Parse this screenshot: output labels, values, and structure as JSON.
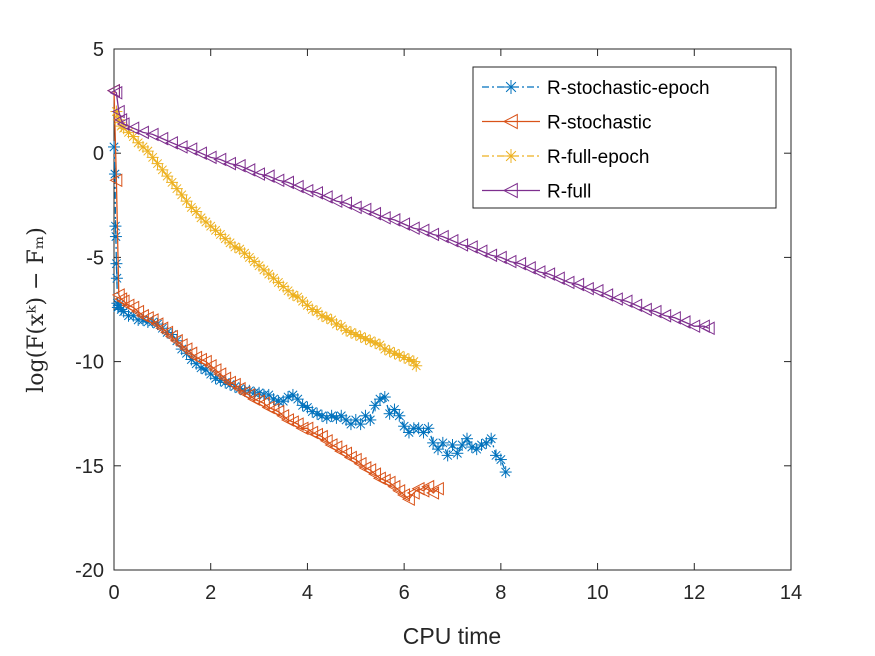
{
  "chart_data": {
    "type": "line",
    "xlabel": "CPU time",
    "ylabel": "log(F(xᵏ) − Fₘ)",
    "xlim": [
      0,
      14
    ],
    "ylim": [
      -20,
      5
    ],
    "xticks": [
      0,
      2,
      4,
      6,
      8,
      10,
      12,
      14
    ],
    "xtick_labels": [
      "0",
      "2",
      "4",
      "6",
      "8",
      "10",
      "12",
      "14"
    ],
    "yticks": [
      -20,
      -15,
      -10,
      -5,
      0,
      5
    ],
    "ytick_labels": [
      "-20",
      "-15",
      "-10",
      "-5",
      "0",
      "5"
    ],
    "grid": false,
    "legend_position": "top-right",
    "series": [
      {
        "name": "R-stochastic-epoch",
        "color": "#0072BD",
        "line_style": "dash-dot",
        "marker": "asterisk",
        "x": [
          0.0,
          0.02,
          0.03,
          0.04,
          0.05,
          0.06,
          0.07,
          0.08,
          0.1,
          0.15,
          0.2,
          0.3,
          0.4,
          0.5,
          0.6,
          0.7,
          0.8,
          0.9,
          1.0,
          1.1,
          1.2,
          1.3,
          1.4,
          1.5,
          1.6,
          1.7,
          1.8,
          1.9,
          2.0,
          2.1,
          2.2,
          2.3,
          2.4,
          2.5,
          2.6,
          2.7,
          2.8,
          2.9,
          3.0,
          3.1,
          3.2,
          3.3,
          3.4,
          3.5,
          3.6,
          3.7,
          3.8,
          3.9,
          4.0,
          4.1,
          4.2,
          4.3,
          4.4,
          4.5,
          4.6,
          4.7,
          4.8,
          4.9,
          5.0,
          5.1,
          5.2,
          5.3,
          5.4,
          5.5,
          5.6,
          5.7,
          5.8,
          5.9,
          6.0,
          6.1,
          6.2,
          6.3,
          6.4,
          6.5,
          6.6,
          6.7,
          6.8,
          6.9,
          7.0,
          7.1,
          7.2,
          7.3,
          7.4,
          7.5,
          7.6,
          7.7,
          7.8,
          7.9,
          8.0,
          8.1
        ],
        "y": [
          0.3,
          -1.0,
          -3.5,
          -4.0,
          -5.3,
          -6.0,
          -7.2,
          -7.4,
          -7.3,
          -7.5,
          -7.6,
          -7.8,
          -7.8,
          -8.0,
          -8.0,
          -8.1,
          -8.1,
          -8.2,
          -8.4,
          -8.6,
          -8.7,
          -9.0,
          -9.4,
          -9.6,
          -9.9,
          -10.1,
          -10.3,
          -10.4,
          -10.6,
          -10.8,
          -10.9,
          -11.0,
          -11.1,
          -11.2,
          -11.3,
          -11.4,
          -11.4,
          -11.5,
          -11.5,
          -11.6,
          -11.6,
          -11.8,
          -11.9,
          -11.9,
          -11.7,
          -11.6,
          -11.8,
          -12.1,
          -12.2,
          -12.4,
          -12.5,
          -12.6,
          -12.7,
          -12.6,
          -12.7,
          -12.6,
          -12.8,
          -13.0,
          -12.8,
          -13.0,
          -12.6,
          -12.8,
          -12.1,
          -11.8,
          -11.7,
          -12.5,
          -12.3,
          -12.6,
          -13.1,
          -13.4,
          -13.2,
          -13.2,
          -13.4,
          -13.2,
          -13.9,
          -14.2,
          -13.9,
          -14.5,
          -14.0,
          -14.4,
          -14.0,
          -13.7,
          -14.1,
          -14.2,
          -14.0,
          -13.9,
          -13.7,
          -14.5,
          -14.7,
          -15.3
        ]
      },
      {
        "name": "R-stochastic",
        "color": "#D95319",
        "line_style": "solid",
        "marker": "triangle-left",
        "x": [
          0.0,
          0.05,
          0.1,
          0.15,
          0.2,
          0.3,
          0.4,
          0.5,
          0.6,
          0.7,
          0.8,
          0.9,
          1.0,
          1.1,
          1.2,
          1.3,
          1.4,
          1.5,
          1.6,
          1.7,
          1.8,
          1.9,
          2.0,
          2.1,
          2.2,
          2.3,
          2.4,
          2.5,
          2.6,
          2.7,
          2.8,
          2.9,
          3.0,
          3.1,
          3.2,
          3.3,
          3.4,
          3.5,
          3.6,
          3.7,
          3.8,
          3.9,
          4.0,
          4.1,
          4.2,
          4.3,
          4.4,
          4.5,
          4.6,
          4.7,
          4.8,
          4.9,
          5.0,
          5.1,
          5.2,
          5.3,
          5.4,
          5.5,
          5.6,
          5.7,
          5.8,
          5.9,
          6.0,
          6.1,
          6.2,
          6.3,
          6.4,
          6.5,
          6.6,
          6.7
        ],
        "y": [
          3.0,
          -1.3,
          -6.8,
          -7.0,
          -7.1,
          -7.3,
          -7.4,
          -7.6,
          -7.8,
          -7.9,
          -8.0,
          -8.2,
          -8.4,
          -8.6,
          -8.8,
          -9.0,
          -9.2,
          -9.4,
          -9.6,
          -9.8,
          -9.9,
          -10.0,
          -10.2,
          -10.4,
          -10.6,
          -10.8,
          -11.0,
          -11.1,
          -11.3,
          -11.5,
          -11.6,
          -11.8,
          -11.9,
          -12.0,
          -12.2,
          -12.3,
          -12.4,
          -12.6,
          -12.8,
          -12.9,
          -13.0,
          -13.2,
          -13.2,
          -13.4,
          -13.5,
          -13.6,
          -13.8,
          -14.0,
          -14.1,
          -14.3,
          -14.4,
          -14.6,
          -14.7,
          -14.9,
          -15.1,
          -15.2,
          -15.4,
          -15.6,
          -15.7,
          -15.8,
          -16.0,
          -16.2,
          -16.4,
          -16.6,
          -16.3,
          -16.1,
          -16.2,
          -16.0,
          -16.3,
          -16.1
        ]
      },
      {
        "name": "R-full-epoch",
        "color": "#EDB120",
        "line_style": "dash-dot",
        "marker": "asterisk",
        "x": [
          0.05,
          0.1,
          0.15,
          0.2,
          0.3,
          0.4,
          0.5,
          0.6,
          0.7,
          0.8,
          0.9,
          1.0,
          1.1,
          1.2,
          1.3,
          1.4,
          1.5,
          1.6,
          1.7,
          1.8,
          1.9,
          2.0,
          2.1,
          2.2,
          2.3,
          2.4,
          2.5,
          2.6,
          2.7,
          2.8,
          2.9,
          3.0,
          3.1,
          3.2,
          3.3,
          3.4,
          3.5,
          3.6,
          3.7,
          3.8,
          3.9,
          4.0,
          4.1,
          4.2,
          4.3,
          4.4,
          4.5,
          4.6,
          4.7,
          4.8,
          4.9,
          5.0,
          5.1,
          5.2,
          5.3,
          5.4,
          5.5,
          5.6,
          5.7,
          5.8,
          5.9,
          6.0,
          6.1,
          6.2,
          6.25
        ],
        "y": [
          2.0,
          1.6,
          1.3,
          1.2,
          1.0,
          0.8,
          0.5,
          0.3,
          0.1,
          -0.2,
          -0.5,
          -0.8,
          -1.1,
          -1.4,
          -1.7,
          -2.0,
          -2.3,
          -2.6,
          -2.8,
          -3.1,
          -3.3,
          -3.5,
          -3.7,
          -3.9,
          -4.1,
          -4.3,
          -4.5,
          -4.6,
          -4.8,
          -5.0,
          -5.2,
          -5.4,
          -5.6,
          -5.8,
          -6.0,
          -6.2,
          -6.4,
          -6.6,
          -6.8,
          -6.9,
          -7.1,
          -7.3,
          -7.5,
          -7.6,
          -7.8,
          -7.9,
          -8.0,
          -8.2,
          -8.3,
          -8.5,
          -8.6,
          -8.7,
          -8.8,
          -8.9,
          -9.0,
          -9.1,
          -9.2,
          -9.4,
          -9.5,
          -9.6,
          -9.7,
          -9.8,
          -9.9,
          -10.0,
          -10.2
        ]
      },
      {
        "name": "R-full",
        "color": "#7E2F8E",
        "line_style": "solid",
        "marker": "triangle-left",
        "x": [
          0.0,
          0.05,
          0.1,
          0.15,
          0.2,
          0.4,
          0.6,
          0.8,
          1.0,
          1.2,
          1.4,
          1.6,
          1.8,
          2.0,
          2.2,
          2.4,
          2.6,
          2.8,
          3.0,
          3.2,
          3.4,
          3.6,
          3.8,
          4.0,
          4.2,
          4.4,
          4.6,
          4.8,
          5.0,
          5.2,
          5.4,
          5.6,
          5.8,
          6.0,
          6.2,
          6.4,
          6.6,
          6.8,
          7.0,
          7.2,
          7.4,
          7.6,
          7.8,
          8.0,
          8.2,
          8.4,
          8.6,
          8.8,
          9.0,
          9.2,
          9.4,
          9.6,
          9.8,
          10.0,
          10.2,
          10.4,
          10.6,
          10.8,
          11.0,
          11.2,
          11.4,
          11.6,
          11.8,
          12.0,
          12.2,
          12.3
        ],
        "y": [
          3.0,
          2.9,
          2.0,
          1.6,
          1.4,
          1.2,
          1.0,
          0.9,
          0.7,
          0.5,
          0.3,
          0.2,
          0.0,
          -0.2,
          -0.3,
          -0.5,
          -0.6,
          -0.8,
          -1.0,
          -1.1,
          -1.3,
          -1.4,
          -1.6,
          -1.8,
          -1.9,
          -2.1,
          -2.3,
          -2.4,
          -2.6,
          -2.7,
          -2.9,
          -3.1,
          -3.2,
          -3.4,
          -3.6,
          -3.7,
          -3.9,
          -4.0,
          -4.2,
          -4.4,
          -4.5,
          -4.7,
          -4.9,
          -5.0,
          -5.2,
          -5.3,
          -5.5,
          -5.7,
          -5.8,
          -6.0,
          -6.2,
          -6.3,
          -6.5,
          -6.6,
          -6.8,
          -7.0,
          -7.1,
          -7.3,
          -7.5,
          -7.6,
          -7.8,
          -7.9,
          -8.1,
          -8.3,
          -8.3,
          -8.4
        ]
      }
    ]
  }
}
